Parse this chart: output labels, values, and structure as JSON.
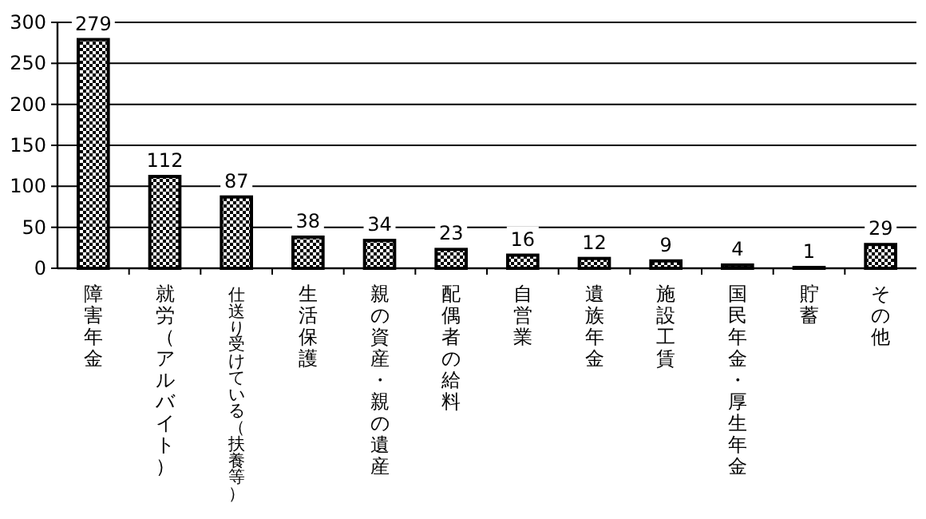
{
  "chart_data": {
    "type": "bar",
    "categories": [
      "障害年金",
      "就労（アルバイト）",
      "仕送り受けている（扶養等）",
      "生活保護",
      "親の資産・親の遺産",
      "配偶者の給料",
      "自営業",
      "遺族年金",
      "施設工賃",
      "国民年金・厚生年金",
      "貯蓄",
      "その他"
    ],
    "values": [
      279,
      112,
      87,
      38,
      34,
      23,
      16,
      12,
      9,
      4,
      1,
      29
    ],
    "color": "#000000",
    "ylim": [
      0,
      300
    ],
    "yticks": [
      0,
      50,
      100,
      150,
      200,
      250,
      300
    ],
    "grid": "y",
    "data_labels": true
  }
}
